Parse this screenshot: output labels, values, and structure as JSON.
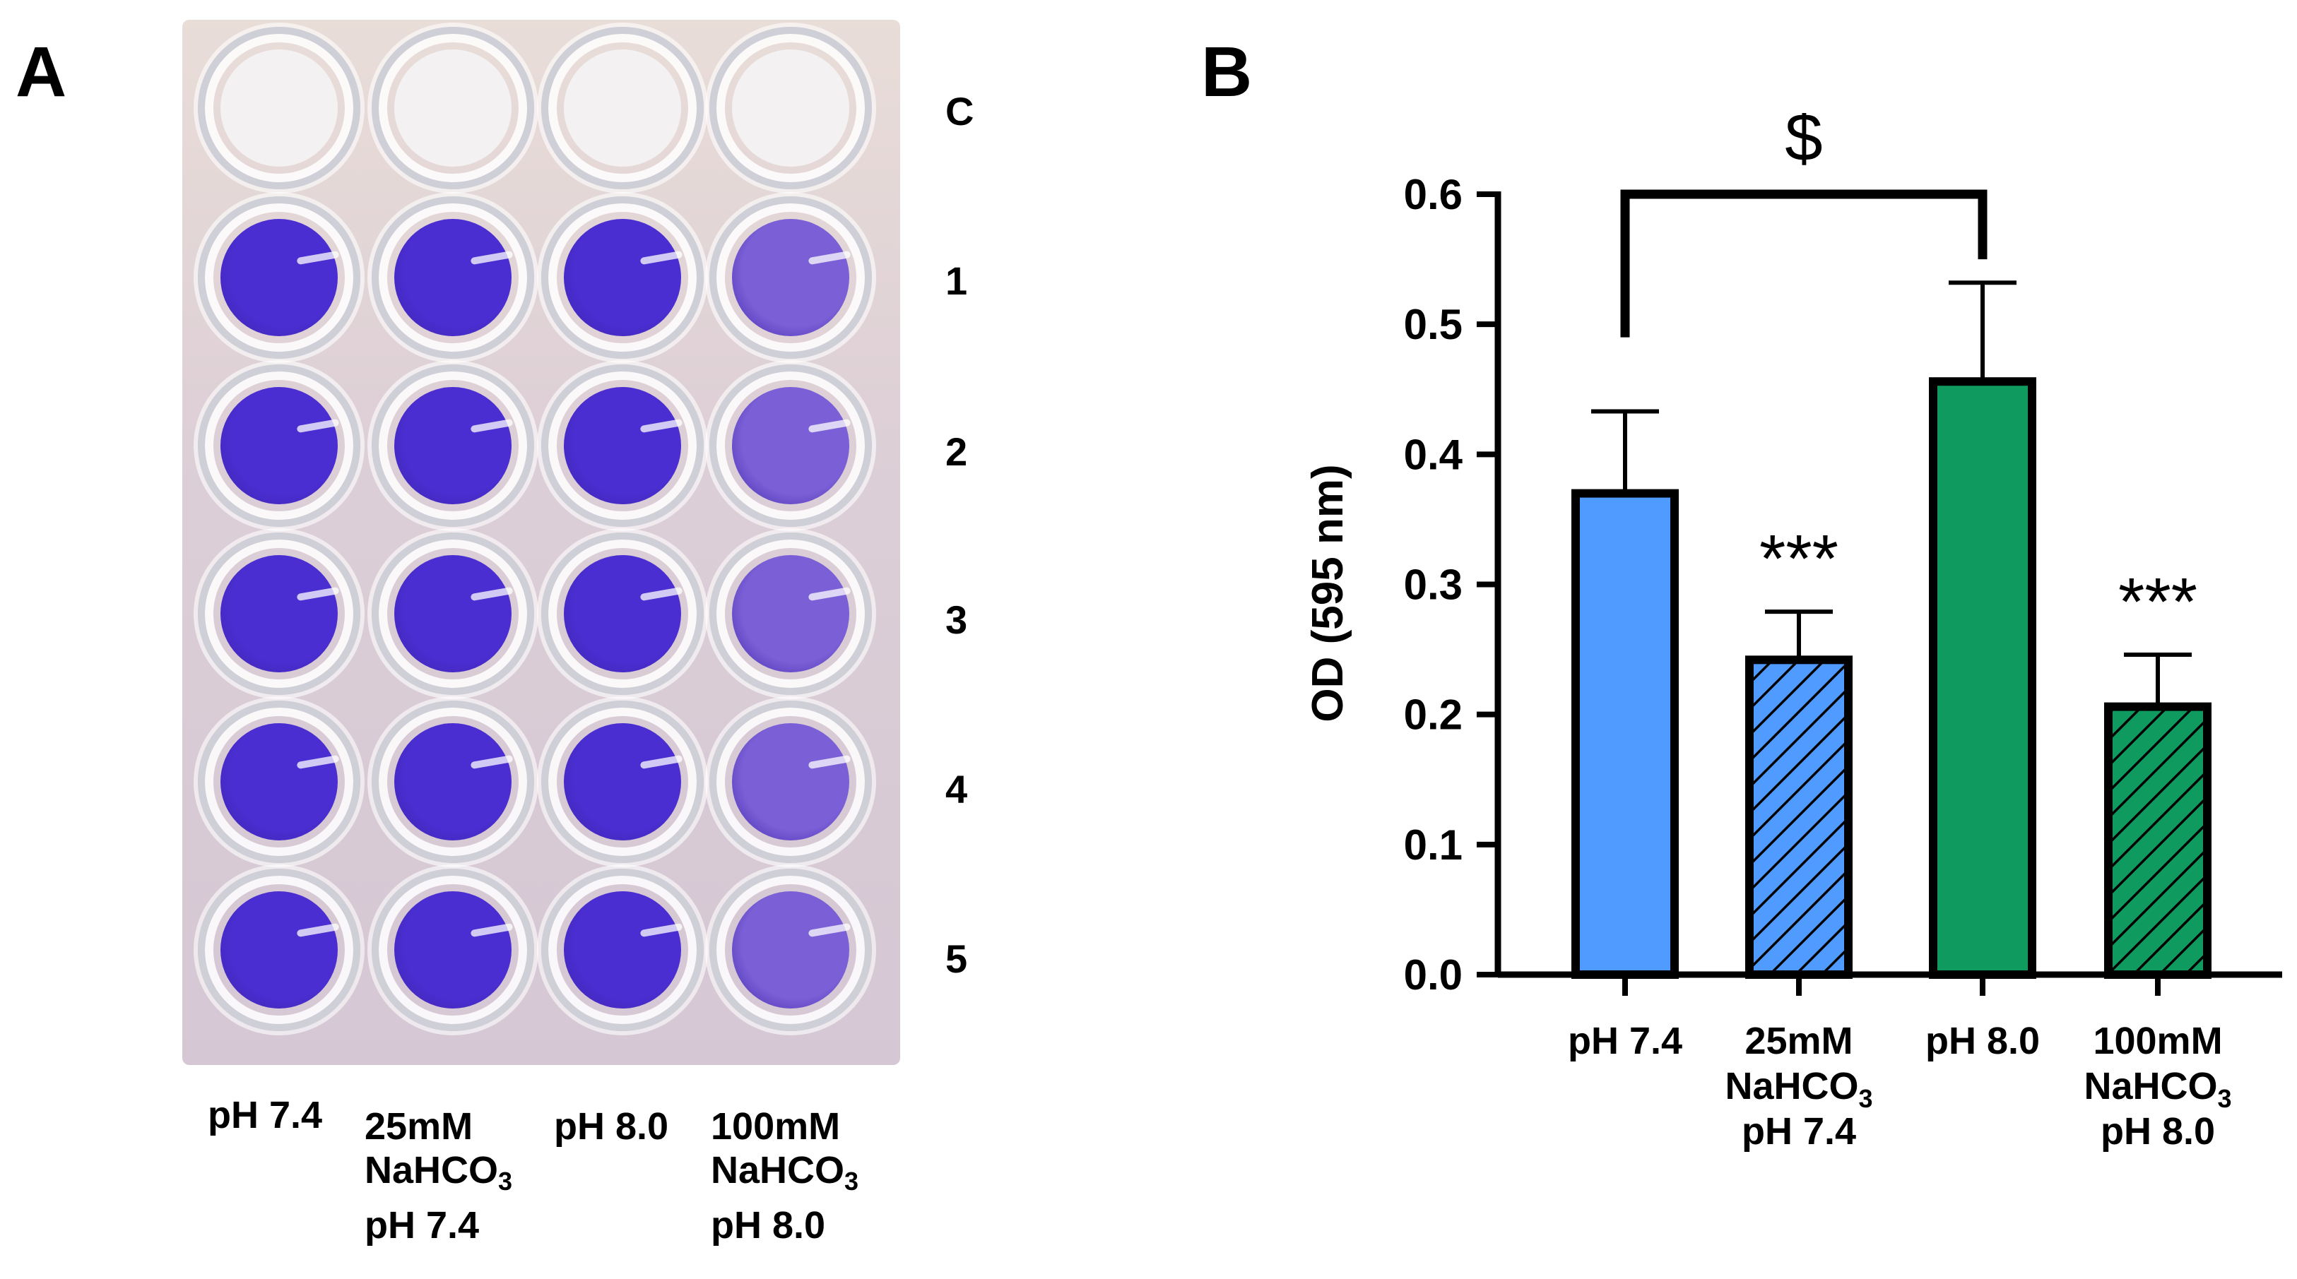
{
  "panels": {
    "a_label": "A",
    "b_label": "B"
  },
  "plate": {
    "row_labels": [
      "C",
      "1",
      "2",
      "3",
      "4",
      "5"
    ],
    "column_labels": [
      {
        "line1": "pH 7.4",
        "line2_base": "",
        "line2_sub": "",
        "line3": ""
      },
      {
        "line1": "25mM",
        "line2_base": "NaHCO",
        "line2_sub": "3",
        "line3": "pH 7.4"
      },
      {
        "line1": "pH 8.0",
        "line2_base": "",
        "line2_sub": "",
        "line3": ""
      },
      {
        "line1": "100mM",
        "line2_base": "NaHCO",
        "line2_sub": "3",
        "line3": "pH 8.0"
      }
    ],
    "colors": {
      "control_well": "#f4f1f2",
      "stain_strong": "#4a2ed1",
      "stain_weak": "#7a5fd6"
    }
  },
  "chart_data": {
    "type": "bar",
    "title": "",
    "xlabel": "",
    "ylabel": "OD (595 nm)",
    "ylim": [
      0,
      0.6
    ],
    "yticks": [
      "0.0",
      "0.1",
      "0.2",
      "0.3",
      "0.4",
      "0.5",
      "0.6"
    ],
    "categories": [
      {
        "line1": "pH 7.4",
        "line2_base": "",
        "line2_sub": "",
        "line3": ""
      },
      {
        "line1": "25mM",
        "line2_base": "NaHCO",
        "line2_sub": "3",
        "line3": "pH 7.4"
      },
      {
        "line1": "pH 8.0",
        "line2_base": "",
        "line2_sub": "",
        "line3": ""
      },
      {
        "line1": "100mM",
        "line2_base": "NaHCO",
        "line2_sub": "3",
        "line3": "pH 8.0"
      }
    ],
    "values": [
      0.37,
      0.242,
      0.456,
      0.206
    ],
    "errors": [
      0.063,
      0.037,
      0.076,
      0.04
    ],
    "fills": [
      "#4f9bff",
      "#4f9bff",
      "#0f9a5f",
      "#0f9a5f"
    ],
    "hatched": [
      false,
      true,
      false,
      true
    ],
    "significance": [
      "",
      "***",
      "",
      "***"
    ],
    "bracket": {
      "from": 0,
      "to": 2,
      "label": "$",
      "y": 0.6
    },
    "grid": false,
    "legend": "none"
  }
}
